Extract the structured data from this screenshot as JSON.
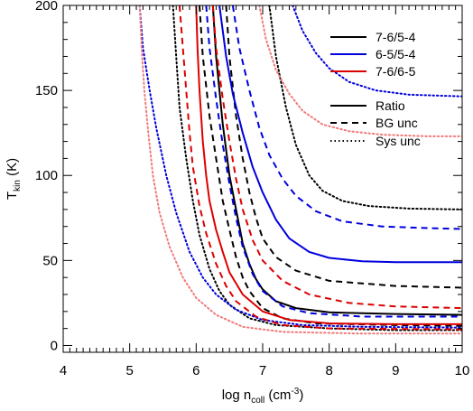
{
  "chart_data": {
    "type": "line",
    "xlabel": {
      "main": "log n",
      "sub": "coll",
      "unit_open": " (cm",
      "unit_sup": "-3",
      "unit_close": ")"
    },
    "ylabel": {
      "main": "T",
      "sub": "kin",
      "unit": " (K)"
    },
    "xlim": [
      4,
      10
    ],
    "ylim": [
      -4,
      200
    ],
    "xticks": [
      4,
      5,
      6,
      7,
      8,
      9,
      10
    ],
    "yticks": [
      0,
      50,
      100,
      150,
      200
    ],
    "grid": false,
    "legend_placement": "top-right",
    "legend_colors": [
      {
        "label": "7-6/5-4",
        "color": "#000000"
      },
      {
        "label": "6-5/5-4",
        "color": "#0000dd"
      },
      {
        "label": "7-6/6-5",
        "color": "#dd0000"
      }
    ],
    "legend_styles": [
      {
        "label": "Ratio",
        "dash": "solid"
      },
      {
        "label": "BG unc",
        "dash": "dashed"
      },
      {
        "label": "Sys unc",
        "dash": "dotted"
      }
    ],
    "series": [
      {
        "group": "7-6/5-4",
        "style": "solid",
        "color": "#000000",
        "points": [
          [
            6.25,
            200
          ],
          [
            6.3,
            170
          ],
          [
            6.35,
            150
          ],
          [
            6.4,
            130
          ],
          [
            6.45,
            115
          ],
          [
            6.5,
            100
          ],
          [
            6.6,
            80
          ],
          [
            6.7,
            60
          ],
          [
            6.8,
            48
          ],
          [
            6.9,
            39
          ],
          [
            7.0,
            33
          ],
          [
            7.2,
            26
          ],
          [
            7.5,
            22
          ],
          [
            8.0,
            19.5
          ],
          [
            9.0,
            18.5
          ],
          [
            10.0,
            18
          ]
        ]
      },
      {
        "group": "7-6/5-4",
        "style": "dashed",
        "color": "#000000",
        "points": [
          [
            6.45,
            200
          ],
          [
            6.5,
            170
          ],
          [
            6.6,
            135
          ],
          [
            6.7,
            110
          ],
          [
            6.8,
            90
          ],
          [
            6.9,
            75
          ],
          [
            7.0,
            63
          ],
          [
            7.2,
            52
          ],
          [
            7.5,
            44
          ],
          [
            8.0,
            38
          ],
          [
            9.0,
            35
          ],
          [
            10.0,
            34
          ]
        ]
      },
      {
        "group": "7-6/5-4",
        "style": "dashed",
        "color": "#000000",
        "points": [
          [
            6.05,
            200
          ],
          [
            6.1,
            170
          ],
          [
            6.2,
            135
          ],
          [
            6.3,
            110
          ],
          [
            6.4,
            85
          ],
          [
            6.5,
            68
          ],
          [
            6.6,
            52
          ],
          [
            6.7,
            40
          ],
          [
            6.8,
            32
          ],
          [
            7.0,
            22
          ],
          [
            7.3,
            16
          ],
          [
            7.8,
            13
          ],
          [
            9.0,
            12
          ],
          [
            10.0,
            11.5
          ]
        ]
      },
      {
        "group": "7-6/5-4",
        "style": "dotted",
        "color": "#000000",
        "points": [
          [
            7.1,
            200
          ],
          [
            7.2,
            170
          ],
          [
            7.35,
            140
          ],
          [
            7.5,
            118
          ],
          [
            7.7,
            100
          ],
          [
            7.9,
            91
          ],
          [
            8.2,
            85
          ],
          [
            8.6,
            82
          ],
          [
            9.2,
            80.5
          ],
          [
            10.0,
            80
          ]
        ]
      },
      {
        "group": "7-6/5-4",
        "style": "dotted",
        "color": "#000000",
        "points": [
          [
            5.65,
            200
          ],
          [
            5.7,
            170
          ],
          [
            5.75,
            140
          ],
          [
            5.85,
            110
          ],
          [
            5.95,
            85
          ],
          [
            6.05,
            65
          ],
          [
            6.2,
            45
          ],
          [
            6.35,
            32
          ],
          [
            6.5,
            24
          ],
          [
            6.8,
            16
          ],
          [
            7.2,
            12
          ],
          [
            8.0,
            10
          ],
          [
            9.0,
            9
          ],
          [
            10.0,
            9
          ]
        ]
      },
      {
        "group": "6-5/5-4",
        "style": "solid",
        "color": "#0000dd",
        "points": [
          [
            6.35,
            200
          ],
          [
            6.45,
            170
          ],
          [
            6.55,
            148
          ],
          [
            6.7,
            125
          ],
          [
            6.85,
            105
          ],
          [
            7.0,
            90
          ],
          [
            7.2,
            74
          ],
          [
            7.4,
            63
          ],
          [
            7.7,
            55
          ],
          [
            8.0,
            51.5
          ],
          [
            8.5,
            49.5
          ],
          [
            9.0,
            49
          ],
          [
            10.0,
            49
          ]
        ]
      },
      {
        "group": "6-5/5-4",
        "style": "dashed",
        "color": "#0000dd",
        "points": [
          [
            6.55,
            200
          ],
          [
            6.65,
            175
          ],
          [
            6.8,
            150
          ],
          [
            6.95,
            128
          ],
          [
            7.1,
            112
          ],
          [
            7.3,
            98
          ],
          [
            7.5,
            88
          ],
          [
            7.8,
            79
          ],
          [
            8.2,
            73
          ],
          [
            8.8,
            70
          ],
          [
            9.5,
            69
          ],
          [
            10.0,
            68.5
          ]
        ]
      },
      {
        "group": "6-5/5-4",
        "style": "dashed",
        "color": "#0000dd",
        "points": [
          [
            6.15,
            200
          ],
          [
            6.2,
            175
          ],
          [
            6.3,
            145
          ],
          [
            6.4,
            118
          ],
          [
            6.5,
            95
          ],
          [
            6.6,
            75
          ],
          [
            6.7,
            58
          ],
          [
            6.85,
            42
          ],
          [
            7.0,
            32
          ],
          [
            7.3,
            23
          ],
          [
            7.7,
            19
          ],
          [
            8.5,
            17
          ],
          [
            10.0,
            17
          ]
        ]
      },
      {
        "group": "6-5/5-4",
        "style": "dotted",
        "color": "#0000dd",
        "points": [
          [
            7.45,
            200
          ],
          [
            7.6,
            185
          ],
          [
            7.8,
            172
          ],
          [
            8.0,
            163
          ],
          [
            8.3,
            155
          ],
          [
            8.7,
            150
          ],
          [
            9.2,
            147.5
          ],
          [
            10.0,
            146.5
          ]
        ]
      },
      {
        "group": "6-5/5-4",
        "style": "dotted",
        "color": "#0000dd",
        "points": [
          [
            5.15,
            200
          ],
          [
            5.2,
            175
          ],
          [
            5.3,
            150
          ],
          [
            5.4,
            128
          ],
          [
            5.55,
            100
          ],
          [
            5.7,
            78
          ],
          [
            5.9,
            55
          ],
          [
            6.1,
            40
          ],
          [
            6.3,
            30
          ],
          [
            6.6,
            21
          ],
          [
            7.0,
            15
          ],
          [
            7.6,
            12
          ],
          [
            8.5,
            11
          ],
          [
            10.0,
            10.5
          ]
        ]
      },
      {
        "group": "7-6/6-5",
        "style": "solid",
        "color": "#dd0000",
        "points": [
          [
            6.0,
            200
          ],
          [
            6.02,
            175
          ],
          [
            6.05,
            150
          ],
          [
            6.1,
            120
          ],
          [
            6.15,
            100
          ],
          [
            6.2,
            85
          ],
          [
            6.3,
            68
          ],
          [
            6.4,
            55
          ],
          [
            6.5,
            43
          ],
          [
            6.7,
            30
          ],
          [
            7.0,
            20
          ],
          [
            7.4,
            15
          ],
          [
            8.0,
            13
          ],
          [
            9.0,
            12.5
          ],
          [
            10.0,
            12.5
          ]
        ]
      },
      {
        "group": "7-6/6-5",
        "style": "dashed",
        "color": "#dd0000",
        "points": [
          [
            6.25,
            200
          ],
          [
            6.3,
            175
          ],
          [
            6.4,
            145
          ],
          [
            6.5,
            120
          ],
          [
            6.6,
            98
          ],
          [
            6.7,
            80
          ],
          [
            6.85,
            62
          ],
          [
            7.0,
            50
          ],
          [
            7.3,
            38
          ],
          [
            7.7,
            30
          ],
          [
            8.3,
            25
          ],
          [
            9.0,
            23
          ],
          [
            10.0,
            22
          ]
        ]
      },
      {
        "group": "7-6/6-5",
        "style": "dashed",
        "color": "#dd0000",
        "points": [
          [
            5.75,
            200
          ],
          [
            5.8,
            175
          ],
          [
            5.85,
            150
          ],
          [
            5.9,
            125
          ],
          [
            5.95,
            105
          ],
          [
            6.05,
            82
          ],
          [
            6.15,
            66
          ],
          [
            6.3,
            48
          ],
          [
            6.45,
            35
          ],
          [
            6.6,
            26
          ],
          [
            6.9,
            17
          ],
          [
            7.3,
            12
          ],
          [
            8.0,
            10
          ],
          [
            10.0,
            9.5
          ]
        ]
      },
      {
        "group": "7-6/6-5",
        "style": "dotted",
        "color": "#f07a7a",
        "points": [
          [
            6.95,
            200
          ],
          [
            7.05,
            180
          ],
          [
            7.2,
            162
          ],
          [
            7.4,
            148
          ],
          [
            7.6,
            138
          ],
          [
            7.9,
            130
          ],
          [
            8.3,
            126
          ],
          [
            8.8,
            124
          ],
          [
            9.5,
            123
          ],
          [
            10.0,
            123
          ]
        ]
      },
      {
        "group": "7-6/6-5",
        "style": "dotted",
        "color": "#f07a7a",
        "points": [
          [
            5.15,
            200
          ],
          [
            5.18,
            175
          ],
          [
            5.22,
            150
          ],
          [
            5.28,
            125
          ],
          [
            5.35,
            100
          ],
          [
            5.45,
            78
          ],
          [
            5.6,
            58
          ],
          [
            5.8,
            40
          ],
          [
            6.0,
            28
          ],
          [
            6.3,
            18
          ],
          [
            6.7,
            11
          ],
          [
            7.3,
            8
          ],
          [
            8.5,
            7
          ],
          [
            10.0,
            7
          ]
        ]
      }
    ]
  }
}
